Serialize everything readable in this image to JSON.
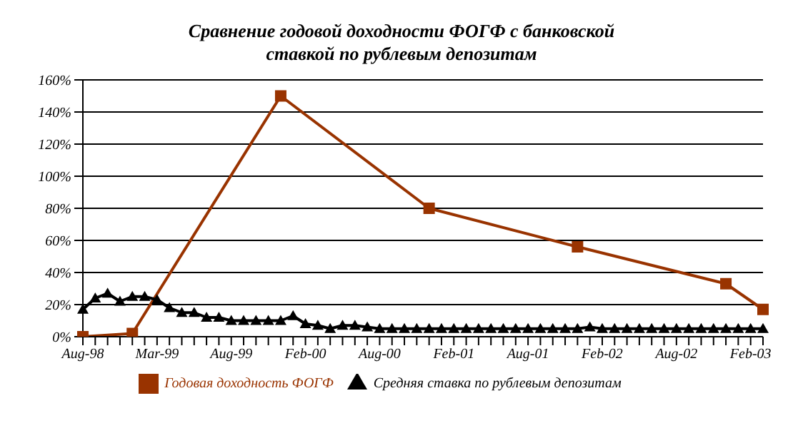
{
  "chart_data": {
    "type": "line",
    "title": "Сравнение годовой доходности ФОГФ с банковской ставкой по рублевым депозитам",
    "categories": [
      "Aug-98",
      null,
      null,
      null,
      null,
      null,
      "Mar-99",
      null,
      null,
      null,
      null,
      null,
      "Aug-99",
      null,
      null,
      null,
      null,
      null,
      "Feb-00",
      null,
      null,
      null,
      null,
      null,
      "Aug-00",
      null,
      null,
      null,
      null,
      null,
      "Feb-01",
      null,
      null,
      null,
      null,
      null,
      "Aug-01",
      null,
      null,
      null,
      null,
      null,
      "Feb-02",
      null,
      null,
      null,
      null,
      null,
      "Aug-02",
      null,
      null,
      null,
      null,
      null,
      "Feb-03",
      null
    ],
    "series": [
      {
        "name": "Годовая доходность ФОГФ",
        "color": "#993300",
        "marker": "square",
        "values": [
          0,
          null,
          null,
          null,
          2,
          null,
          null,
          null,
          null,
          null,
          null,
          null,
          null,
          null,
          null,
          null,
          150,
          null,
          null,
          null,
          null,
          null,
          null,
          null,
          null,
          null,
          null,
          null,
          80,
          null,
          null,
          null,
          null,
          null,
          null,
          null,
          null,
          null,
          null,
          null,
          56,
          null,
          null,
          null,
          null,
          null,
          null,
          null,
          null,
          null,
          null,
          null,
          33,
          null,
          null,
          17
        ]
      },
      {
        "name": "Средняя ставка по рублевым депозитам",
        "color": "#000000",
        "marker": "triangle",
        "values": [
          17,
          24,
          27,
          22,
          25,
          25,
          23,
          18,
          15,
          15,
          12,
          12,
          10,
          10,
          10,
          10,
          10,
          13,
          8,
          7,
          5,
          7,
          7,
          6,
          5,
          5,
          5,
          5,
          5,
          5,
          5,
          5,
          5,
          5,
          5,
          5,
          5,
          5,
          5,
          5,
          5,
          6,
          5,
          5,
          5,
          5,
          5,
          5,
          5,
          5,
          5,
          5,
          5,
          5,
          5,
          5
        ]
      }
    ],
    "ylim": [
      0,
      160
    ],
    "yticks": [
      {
        "value": 0,
        "label": "0%"
      },
      {
        "value": 20,
        "label": "20%"
      },
      {
        "value": 40,
        "label": "40%"
      },
      {
        "value": 60,
        "label": "60%"
      },
      {
        "value": 80,
        "label": "80%"
      },
      {
        "value": 100,
        "label": "100%"
      },
      {
        "value": 120,
        "label": "120%"
      },
      {
        "value": 140,
        "label": "140%"
      },
      {
        "value": 160,
        "label": "160%"
      }
    ],
    "grid": "y",
    "legend": "bottom"
  }
}
